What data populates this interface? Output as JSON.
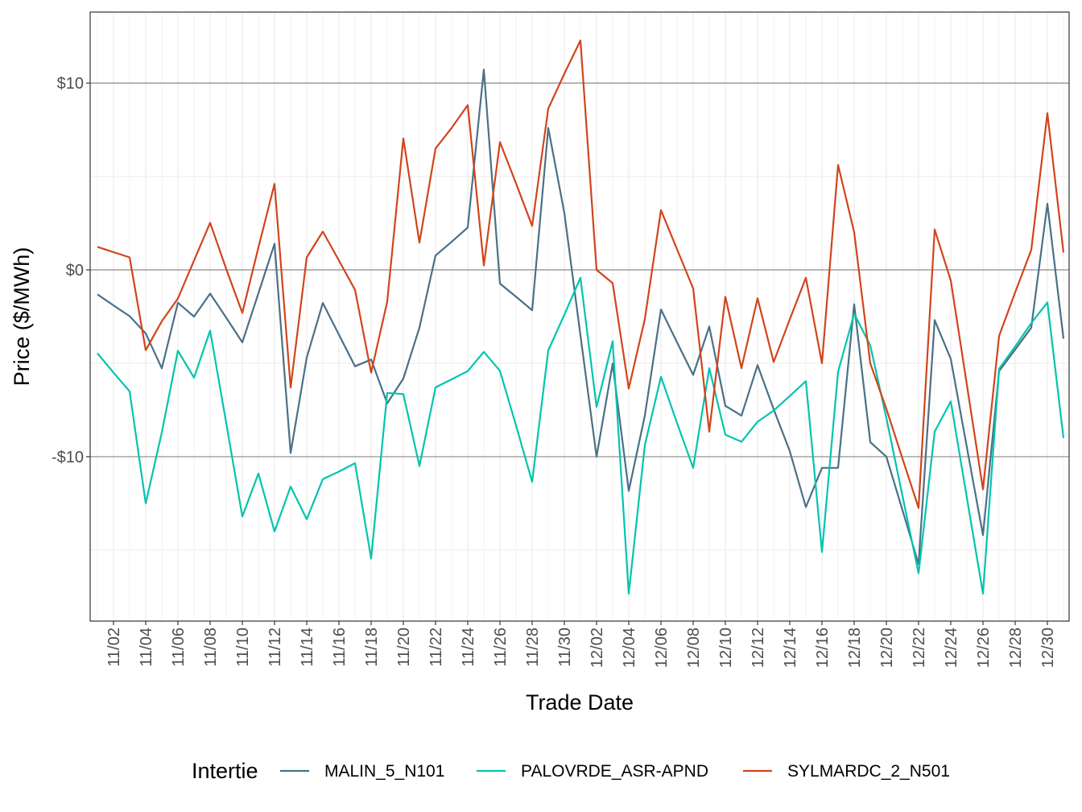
{
  "chart_data": {
    "type": "line",
    "xlabel": "Trade Date",
    "ylabel": "Price ($/MWh)",
    "ylim": [
      -18.8,
      13.8
    ],
    "y_ticks": [
      10,
      0,
      -10
    ],
    "y_tick_labels": [
      "$10",
      "$0",
      "-$10"
    ],
    "grid": true,
    "legend": {
      "title": "Intertie",
      "placement": "bottom"
    },
    "x": [
      "11/01",
      "11/02",
      "11/03",
      "11/04",
      "11/05",
      "11/06",
      "11/07",
      "11/08",
      "11/09",
      "11/10",
      "11/11",
      "11/12",
      "11/13",
      "11/14",
      "11/15",
      "11/16",
      "11/17",
      "11/18",
      "11/19",
      "11/20",
      "11/21",
      "11/22",
      "11/23",
      "11/24",
      "11/25",
      "11/26",
      "11/27",
      "11/28",
      "11/29",
      "11/30",
      "12/01",
      "12/02",
      "12/03",
      "12/04",
      "12/05",
      "12/06",
      "12/07",
      "12/08",
      "12/09",
      "12/10",
      "12/11",
      "12/12",
      "12/13",
      "12/14",
      "12/15",
      "12/16",
      "12/17",
      "12/18",
      "12/19",
      "12/20",
      "12/21",
      "12/22",
      "12/23",
      "12/24",
      "12/25",
      "12/26",
      "12/27",
      "12/28",
      "12/29",
      "12/30",
      "12/31"
    ],
    "x_tick_labels": [
      "11/02",
      "11/04",
      "11/06",
      "11/08",
      "11/10",
      "11/12",
      "11/14",
      "11/16",
      "11/18",
      "11/20",
      "11/22",
      "11/24",
      "11/26",
      "11/28",
      "11/30",
      "12/02",
      "12/04",
      "12/06",
      "12/08",
      "12/10",
      "12/12",
      "12/14",
      "12/16",
      "12/18",
      "12/20",
      "12/22",
      "12/24",
      "12/26",
      "12/28",
      "12/30"
    ],
    "series": [
      {
        "name": "MALIN_5_N101",
        "color": "#4a7087",
        "values": [
          -1.31,
          -1.9,
          -2.48,
          -3.4,
          -5.27,
          -1.76,
          -2.5,
          -1.27,
          -2.56,
          -3.88,
          -1.25,
          1.4,
          -9.8,
          -4.7,
          -1.77,
          -3.47,
          -5.16,
          -4.8,
          -7.14,
          -5.82,
          -3.09,
          0.77,
          1.5,
          2.27,
          10.72,
          -0.73,
          -1.44,
          -2.16,
          7.6,
          3.05,
          -3.5,
          -10.0,
          -5.02,
          -11.83,
          -7.8,
          -2.12,
          -3.88,
          -5.62,
          -3.03,
          -7.28,
          -7.8,
          -5.1,
          -7.46,
          -9.7,
          -12.7,
          -10.6,
          -10.6,
          -1.84,
          -9.22,
          -10.0,
          -12.86,
          -15.75,
          -2.69,
          -4.77,
          -9.5,
          -14.2,
          -5.42,
          -4.27,
          -3.09,
          3.54,
          -3.68
        ]
      },
      {
        "name": "PALOVRDE_ASR-APND",
        "color": "#00c5ad",
        "values": [
          -4.46,
          -5.5,
          -6.5,
          -12.5,
          -8.7,
          -4.33,
          -5.77,
          -3.25,
          -8.2,
          -13.2,
          -10.9,
          -14.0,
          -11.6,
          -13.35,
          -11.2,
          -10.8,
          -10.35,
          -15.45,
          -6.59,
          -6.65,
          -10.5,
          -6.29,
          -5.86,
          -5.42,
          -4.39,
          -5.4,
          -8.33,
          -11.35,
          -4.31,
          -2.4,
          -0.42,
          -7.34,
          -3.82,
          -17.33,
          -9.38,
          -5.72,
          -8.2,
          -10.6,
          -5.26,
          -8.82,
          -9.2,
          -8.13,
          -7.53,
          -6.75,
          -5.96,
          -15.1,
          -5.46,
          -2.35,
          -4.04,
          -7.93,
          -12.1,
          -16.24,
          -8.66,
          -7.04,
          -12.2,
          -17.33,
          -5.3,
          -4.1,
          -2.85,
          -1.74,
          -9.0
        ]
      },
      {
        "name": "SYLMARDC_2_N501",
        "color": "#d2441c",
        "values": [
          1.23,
          0.95,
          0.67,
          -4.3,
          -2.75,
          -1.53,
          0.5,
          2.52,
          0.05,
          -2.3,
          1.2,
          4.6,
          -6.3,
          0.67,
          2.05,
          0.5,
          -1.07,
          -5.5,
          -1.7,
          7.04,
          1.46,
          6.5,
          7.6,
          8.82,
          0.24,
          6.84,
          4.63,
          2.35,
          8.63,
          10.5,
          12.28,
          0.0,
          -0.71,
          -6.35,
          -2.63,
          3.2,
          1.1,
          -0.99,
          -8.66,
          -1.44,
          -5.26,
          -1.52,
          -4.93,
          -2.65,
          -0.42,
          -5.0,
          5.62,
          2.02,
          -5.0,
          -7.44,
          -10.1,
          -12.74,
          2.16,
          -0.57,
          -6.15,
          -11.75,
          -3.54,
          -1.2,
          1.07,
          8.39,
          0.93
        ]
      }
    ]
  }
}
